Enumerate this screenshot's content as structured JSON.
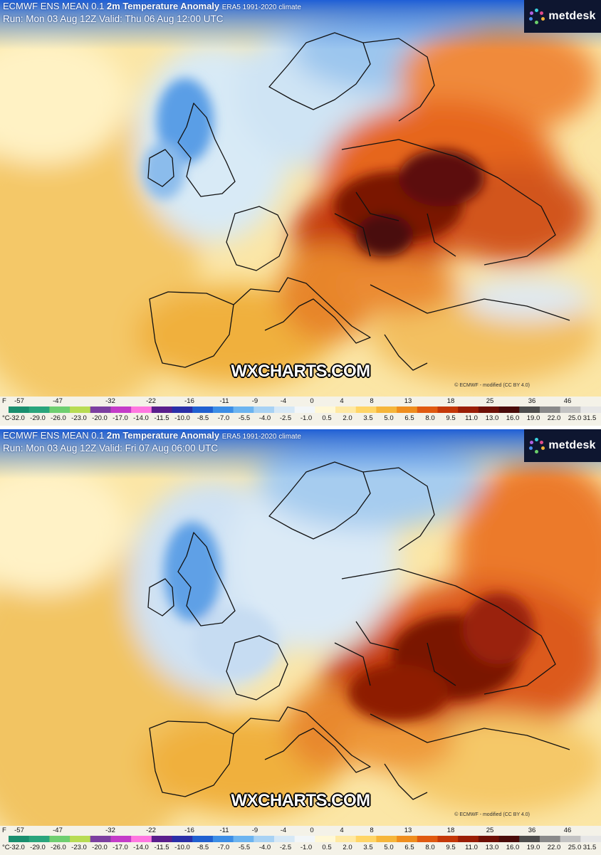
{
  "legend_f_unit": "F",
  "legend_c_unit": "°C",
  "legend_f_labels": [
    "-57",
    "-47",
    "-32",
    "-22",
    "-16",
    "-11",
    "-9",
    "-4",
    "0",
    "4",
    "8",
    "13",
    "18",
    "25",
    "36",
    "46"
  ],
  "legend_c_labels": [
    "-32.0",
    "-29.0",
    "-26.0",
    "-23.0",
    "-20.0",
    "-17.0",
    "-14.0",
    "-11.5",
    "-10.0",
    "-8.5",
    "-7.0",
    "-5.5",
    "-4.0",
    "-2.5",
    "-1.0",
    "0.5",
    "2.0",
    "3.5",
    "5.0",
    "6.5",
    "8.0",
    "9.5",
    "11.0",
    "13.0",
    "16.0",
    "19.0",
    "22.0",
    "25.0",
    "31.5"
  ],
  "legend_colors": [
    "#1a8f6e",
    "#2aa57c",
    "#6fcf70",
    "#b8dc52",
    "#7c3fa0",
    "#c43cc8",
    "#ff77e0",
    "#5a1e8c",
    "#2a2fa8",
    "#2060d0",
    "#3c8ee6",
    "#6cb4f0",
    "#a8d2f4",
    "#d6e8f6",
    "#f2f6f8",
    "#fff8d6",
    "#ffe9a2",
    "#ffd566",
    "#f6b63a",
    "#ef8e1e",
    "#e05a10",
    "#c43808",
    "#9a1e06",
    "#6e1006",
    "#4a0c0a",
    "#4e4e4e",
    "#8a8a8a",
    "#c2c2c2",
    "#e6e6e6"
  ],
  "panels": [
    {
      "product": "ECMWF ENS MEAN 0.1",
      "title": "2m Temperature Anomaly",
      "climate": "ERA5 1991-2020 climate",
      "run_line": "Run: Mon 03 Aug 12Z Valid: Thu 06 Aug 12:00 UTC",
      "logo_text": "metdesk",
      "watermark": "WXCHARTS.COM",
      "copyright": "© ECMWF - modified (CC BY 4.0)"
    },
    {
      "product": "ECMWF ENS MEAN 0.1",
      "title": "2m Temperature Anomaly",
      "climate": "ERA5 1991-2020 climate",
      "run_line": "Run: Mon 03 Aug 12Z Valid: Fri 07 Aug 06:00 UTC",
      "logo_text": "metdesk",
      "watermark": "WXCHARTS.COM",
      "copyright": "© ECMWF - modified (CC BY 4.0)"
    }
  ]
}
